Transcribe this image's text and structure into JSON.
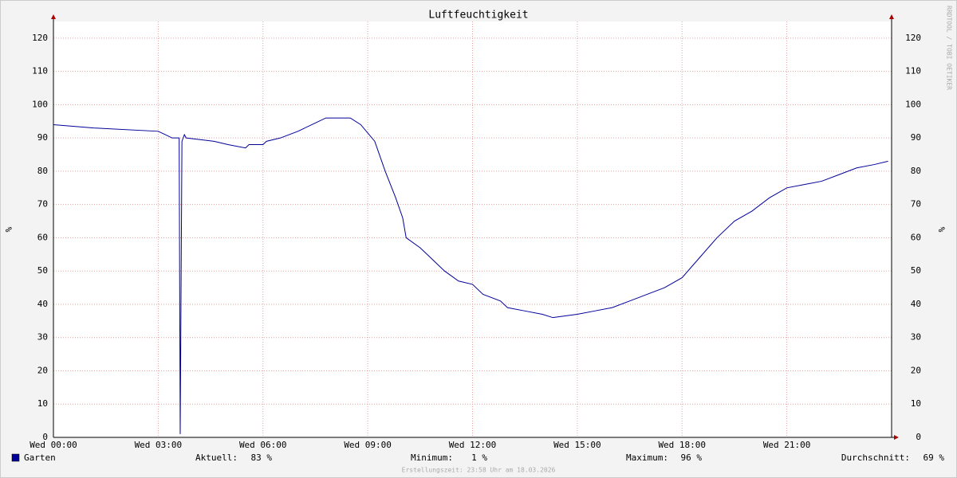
{
  "chart_data": {
    "type": "line",
    "title": "Luftfeuchtigkeit",
    "y_label": "%",
    "y2_label": "%",
    "watermark": "RRDTOOL / TOBI OETIKER",
    "footer": "Erstellungszeit: 23:58 Uhr am 18.03.2026",
    "xlim": [
      0,
      24
    ],
    "xticks": [
      {
        "value": 0,
        "label": "Wed 00:00"
      },
      {
        "value": 3,
        "label": "Wed 03:00"
      },
      {
        "value": 6,
        "label": "Wed 06:00"
      },
      {
        "value": 9,
        "label": "Wed 09:00"
      },
      {
        "value": 12,
        "label": "Wed 12:00"
      },
      {
        "value": 15,
        "label": "Wed 15:00"
      },
      {
        "value": 18,
        "label": "Wed 18:00"
      },
      {
        "value": 21,
        "label": "Wed 21:00"
      }
    ],
    "ylim": [
      0,
      125
    ],
    "yticks": [
      0,
      10,
      20,
      30,
      40,
      50,
      60,
      70,
      80,
      90,
      100,
      110,
      120
    ],
    "grid": true,
    "x": [
      0,
      1.15,
      3.0,
      3.2,
      3.4,
      3.6,
      3.63,
      3.68,
      3.75,
      3.8,
      4.6,
      5.0,
      5.5,
      5.6,
      6.0,
      6.1,
      6.5,
      7.0,
      7.4,
      7.8,
      8.5,
      8.8,
      9.2,
      9.5,
      9.8,
      10.0,
      10.1,
      10.5,
      10.8,
      11.2,
      11.6,
      12.0,
      12.3,
      12.8,
      13.0,
      13.5,
      14.0,
      14.3,
      15.0,
      15.5,
      16.0,
      16.5,
      17.0,
      17.5,
      18.0,
      18.5,
      19.0,
      19.5,
      20.0,
      20.5,
      21.0,
      21.5,
      22.0,
      22.5,
      23.0,
      23.5,
      23.9
    ],
    "series": [
      {
        "name": "Garten",
        "color": "#000099",
        "values": [
          94,
          93,
          92,
          91,
          90,
          90,
          1,
          89,
          91,
          90,
          89,
          88,
          87,
          88,
          88,
          89,
          90,
          92,
          94,
          96,
          96,
          94,
          89,
          80,
          72,
          66,
          60,
          57,
          54,
          50,
          47,
          46,
          43,
          41,
          39,
          38,
          37,
          36,
          37,
          38,
          39,
          41,
          43,
          45,
          48,
          54,
          60,
          65,
          68,
          72,
          75,
          76,
          77,
          79,
          81,
          82,
          83
        ]
      }
    ],
    "stats": [
      {
        "label": "Aktuell:",
        "text": "83 %"
      },
      {
        "label": "Minimum:",
        "text": "1 %"
      },
      {
        "label": "Maximum:",
        "text": "96 %"
      },
      {
        "label": "Durchschnitt:",
        "text": "69 %"
      }
    ]
  }
}
